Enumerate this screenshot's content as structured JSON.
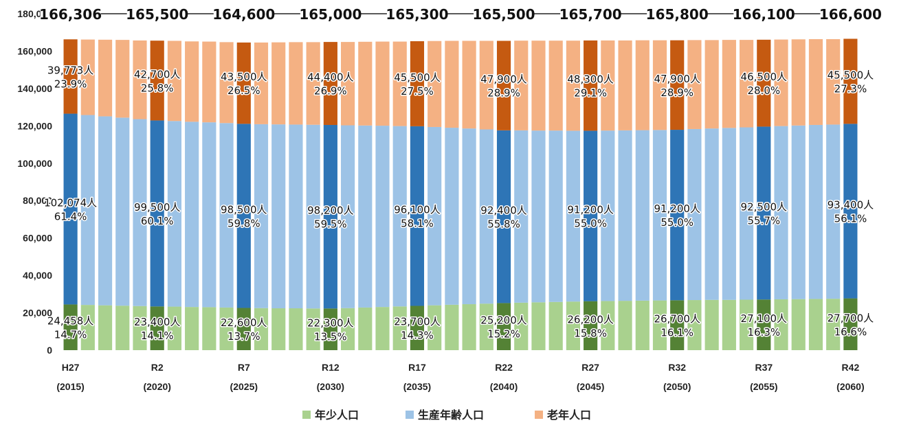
{
  "chart_data": {
    "type": "bar",
    "stacked": true,
    "ylim": [
      0,
      180000
    ],
    "yticks": [
      "0",
      "20,000",
      "40,000",
      "60,000",
      "80,000",
      "100,000",
      "120,000",
      "140,000",
      "160,000",
      "180,000"
    ],
    "x_labels": [
      {
        "era": "H27",
        "year": "(2015)"
      },
      {
        "era": "R2",
        "year": "(2020)"
      },
      {
        "era": "R7",
        "year": "(2025)"
      },
      {
        "era": "R12",
        "year": "(2030)"
      },
      {
        "era": "R17",
        "year": "(2035)"
      },
      {
        "era": "R22",
        "year": "(2040)"
      },
      {
        "era": "R27",
        "year": "(2045)"
      },
      {
        "era": "R32",
        "year": "(2050)"
      },
      {
        "era": "R37",
        "year": "(2055)"
      },
      {
        "era": "R42",
        "year": "(2060)"
      }
    ],
    "totals_text": [
      "166,306",
      "165,500",
      "164,600",
      "165,000",
      "165,300",
      "165,500",
      "165,700",
      "165,800",
      "166,100",
      "166,600"
    ],
    "years": [
      2015,
      2016,
      2017,
      2018,
      2019,
      2020,
      2021,
      2022,
      2023,
      2024,
      2025,
      2026,
      2027,
      2028,
      2029,
      2030,
      2031,
      2032,
      2033,
      2034,
      2035,
      2036,
      2037,
      2038,
      2039,
      2040,
      2041,
      2042,
      2043,
      2044,
      2045,
      2046,
      2047,
      2048,
      2049,
      2050,
      2051,
      2052,
      2053,
      2054,
      2055,
      2056,
      2057,
      2058,
      2059,
      2060
    ],
    "highlight_years": [
      2015,
      2020,
      2025,
      2030,
      2035,
      2040,
      2045,
      2050,
      2055,
      2060
    ],
    "series": [
      {
        "name": "年少人口",
        "color": "#a9d18e",
        "highlight_color": "#548235",
        "values": [
          24458,
          24200,
          24000,
          23800,
          23600,
          23400,
          23300,
          23100,
          23000,
          22800,
          22600,
          22500,
          22400,
          22400,
          22300,
          22300,
          22500,
          22800,
          23100,
          23400,
          23700,
          24000,
          24300,
          24600,
          24900,
          25200,
          25400,
          25600,
          25800,
          26000,
          26200,
          26300,
          26400,
          26500,
          26600,
          26700,
          26800,
          26900,
          26900,
          27000,
          27100,
          27200,
          27300,
          27400,
          27500,
          27700
        ],
        "labels": [
          "24,458人",
          "23,400人",
          "22,600人",
          "22,300人",
          "23,700人",
          "25,200人",
          "26,200人",
          "26,700人",
          "27,100人",
          "27,700人"
        ],
        "percents": [
          "14.7%",
          "14.1%",
          "13.7%",
          "13.5%",
          "14.3%",
          "15.2%",
          "15.8%",
          "16.1%",
          "16.3%",
          "16.6%"
        ]
      },
      {
        "name": "生産年齢人口",
        "color": "#9dc3e6",
        "highlight_color": "#2e75b6",
        "values": [
          102074,
          101600,
          101100,
          100600,
          100000,
          99500,
          99300,
          99100,
          98900,
          98700,
          98500,
          98400,
          98400,
          98300,
          98300,
          98200,
          97800,
          97400,
          97000,
          96500,
          96100,
          95400,
          94700,
          94000,
          93200,
          92400,
          92200,
          91900,
          91700,
          91400,
          91200,
          91200,
          91200,
          91200,
          91200,
          91200,
          91500,
          91700,
          92000,
          92200,
          92500,
          92700,
          92900,
          93100,
          93200,
          93400
        ],
        "labels": [
          "102,074人",
          "99,500人",
          "98,500人",
          "98,200人",
          "96,100人",
          "92,400人",
          "91,200人",
          "91,200人",
          "92,500人",
          "93,400人"
        ],
        "percents": [
          "61.4%",
          "60.1%",
          "59.8%",
          "59.5%",
          "58.1%",
          "55.8%",
          "55.0%",
          "55.0%",
          "55.7%",
          "56.1%"
        ]
      },
      {
        "name": "老年人口",
        "color": "#f4b183",
        "highlight_color": "#c55a11",
        "values": [
          39773,
          40400,
          41000,
          41600,
          42100,
          42700,
          42900,
          43000,
          43200,
          43300,
          43500,
          43700,
          43900,
          44100,
          44200,
          44400,
          44600,
          44800,
          45000,
          45200,
          45500,
          46000,
          46500,
          46900,
          47400,
          47900,
          48000,
          48100,
          48100,
          48200,
          48300,
          48200,
          48100,
          48100,
          48000,
          47900,
          47600,
          47300,
          47100,
          46800,
          46500,
          46300,
          46100,
          45900,
          45700,
          45500
        ],
        "labels": [
          "39,773人",
          "42,700人",
          "43,500人",
          "44,400人",
          "45,500人",
          "47,900人",
          "48,300人",
          "47,900人",
          "46,500人",
          "45,500人"
        ],
        "percents": [
          "23.9%",
          "25.8%",
          "26.5%",
          "26.9%",
          "27.5%",
          "28.9%",
          "29.1%",
          "28.9%",
          "28.0%",
          "27.3%"
        ]
      }
    ]
  }
}
